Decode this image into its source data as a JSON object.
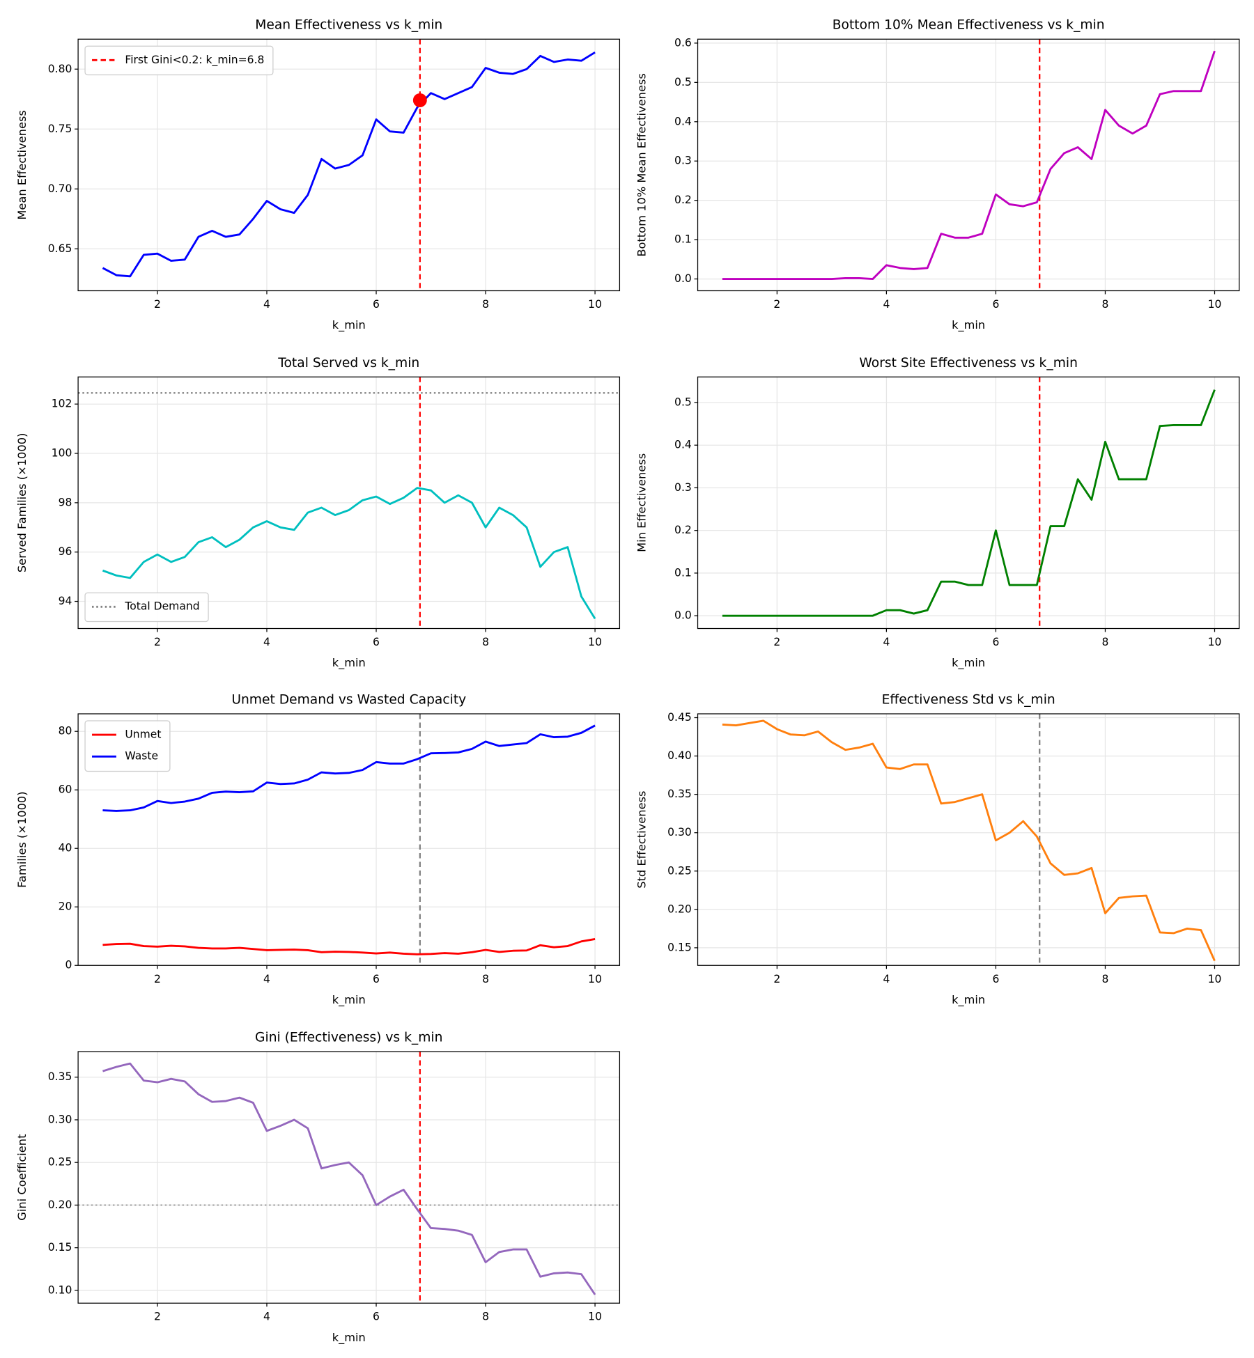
{
  "chart_data": [
    {
      "type": "line",
      "title": "Mean Effectiveness vs k_min",
      "xlabel": "k_min",
      "ylabel": "Mean Effectiveness",
      "x": [
        1,
        1.25,
        1.5,
        1.75,
        2,
        2.25,
        2.5,
        2.75,
        3,
        3.25,
        3.5,
        3.75,
        4,
        4.25,
        4.5,
        4.75,
        5,
        5.25,
        5.5,
        5.75,
        6,
        6.25,
        6.5,
        6.75,
        7,
        7.25,
        7.5,
        7.75,
        8,
        8.25,
        8.5,
        8.75,
        9,
        9.25,
        9.5,
        9.75,
        10
      ],
      "series": [
        {
          "color": "#0000ff",
          "values": [
            0.634,
            0.628,
            0.627,
            0.645,
            0.646,
            0.64,
            0.641,
            0.66,
            0.665,
            0.66,
            0.662,
            0.675,
            0.69,
            0.683,
            0.68,
            0.695,
            0.725,
            0.717,
            0.72,
            0.728,
            0.758,
            0.748,
            0.747,
            0.768,
            0.78,
            0.775,
            0.78,
            0.785,
            0.801,
            0.797,
            0.796,
            0.8,
            0.811,
            0.806,
            0.808,
            0.807,
            0.814
          ]
        }
      ],
      "vline": {
        "x": 6.8,
        "color": "#ff0000",
        "style": "dashed",
        "name": "First Gini<0.2: k_min=6.8"
      },
      "marker": {
        "x": 6.8,
        "y": 0.774,
        "color": "#ff0000"
      },
      "xlim": [
        0.55,
        10.45
      ],
      "xticks": [
        2,
        4,
        6,
        8,
        10
      ],
      "ylim": [
        0.615,
        0.825
      ],
      "yticks": [
        0.65,
        {
          "value": 0.7,
          "label": "0.70"
        },
        0.75,
        {
          "value": 0.8,
          "label": "0.80"
        }
      ],
      "grid": true,
      "legend": "upper left"
    },
    {
      "type": "line",
      "title": "Bottom 10% Mean Effectiveness vs k_min",
      "xlabel": "k_min",
      "ylabel": "Bottom 10% Mean Effectiveness",
      "x": [
        1,
        1.25,
        1.5,
        1.75,
        2,
        2.25,
        2.5,
        2.75,
        3,
        3.25,
        3.5,
        3.75,
        4,
        4.25,
        4.5,
        4.75,
        5,
        5.25,
        5.5,
        5.75,
        6,
        6.25,
        6.5,
        6.75,
        7,
        7.25,
        7.5,
        7.75,
        8,
        8.25,
        8.5,
        8.75,
        9,
        9.25,
        9.5,
        9.75,
        10
      ],
      "series": [
        {
          "color": "#bf00bf",
          "values": [
            0,
            0,
            0,
            0,
            0,
            0,
            0,
            0,
            0,
            0.002,
            0.002,
            0,
            0.035,
            0.028,
            0.025,
            0.028,
            0.115,
            0.105,
            0.105,
            0.115,
            0.215,
            0.19,
            0.185,
            0.195,
            0.28,
            0.32,
            0.335,
            0.305,
            0.43,
            0.39,
            0.37,
            0.39,
            0.47,
            0.478,
            0.478,
            0.478,
            0.58
          ]
        }
      ],
      "vline": {
        "x": 6.8,
        "color": "#ff0000",
        "style": "dashed"
      },
      "xlim": [
        0.55,
        10.45
      ],
      "xticks": [
        2,
        4,
        6,
        8,
        10
      ],
      "ylim": [
        -0.03,
        0.61
      ],
      "yticks": [
        {
          "value": 0,
          "label": "0.0"
        },
        0.1,
        0.2,
        0.3,
        0.4,
        0.5,
        0.6
      ],
      "grid": true
    },
    {
      "type": "line",
      "title": "Total Served vs k_min",
      "xlabel": "k_min",
      "ylabel": "Served Families (×1000)",
      "x": [
        1,
        1.25,
        1.5,
        1.75,
        2,
        2.25,
        2.5,
        2.75,
        3,
        3.25,
        3.5,
        3.75,
        4,
        4.25,
        4.5,
        4.75,
        5,
        5.25,
        5.5,
        5.75,
        6,
        6.25,
        6.5,
        6.75,
        7,
        7.25,
        7.5,
        7.75,
        8,
        8.25,
        8.5,
        8.75,
        9,
        9.25,
        9.5,
        9.75,
        10
      ],
      "series": [
        {
          "color": "#00bfbf",
          "values": [
            95.25,
            95.05,
            94.95,
            95.6,
            95.9,
            95.6,
            95.8,
            96.4,
            96.6,
            96.2,
            96.5,
            97.0,
            97.25,
            97.0,
            96.9,
            97.6,
            97.8,
            97.5,
            97.7,
            98.1,
            98.25,
            97.95,
            98.2,
            98.6,
            98.5,
            98.0,
            98.3,
            98.0,
            97.0,
            97.8,
            97.5,
            97.0,
            95.4,
            96.0,
            96.2,
            94.2,
            93.3
          ]
        }
      ],
      "vline": {
        "x": 6.8,
        "color": "#ff0000",
        "style": "dashed"
      },
      "hline": {
        "y": 102.45,
        "color": "#808080",
        "style": "dotted",
        "name": "Total Demand"
      },
      "xlim": [
        0.55,
        10.45
      ],
      "xticks": [
        2,
        4,
        6,
        8,
        10
      ],
      "ylim": [
        92.9,
        103.1
      ],
      "yticks": [
        94,
        96,
        98,
        100,
        102
      ],
      "grid": true,
      "legend": "lower left"
    },
    {
      "type": "line",
      "title": "Worst Site Effectiveness vs k_min",
      "xlabel": "k_min",
      "ylabel": "Min Effectiveness",
      "x": [
        1,
        1.25,
        1.5,
        1.75,
        2,
        2.25,
        2.5,
        2.75,
        3,
        3.25,
        3.5,
        3.75,
        4,
        4.25,
        4.5,
        4.75,
        5,
        5.25,
        5.5,
        5.75,
        6,
        6.25,
        6.5,
        6.75,
        7,
        7.25,
        7.5,
        7.75,
        8,
        8.25,
        8.5,
        8.75,
        9,
        9.25,
        9.5,
        9.75,
        10
      ],
      "series": [
        {
          "color": "#008000",
          "values": [
            0,
            0,
            0,
            0,
            0,
            0,
            0,
            0,
            0,
            0,
            0,
            0,
            0.013,
            0.013,
            0.005,
            0.013,
            0.08,
            0.08,
            0.072,
            0.072,
            0.2,
            0.072,
            0.072,
            0.072,
            0.21,
            0.21,
            0.32,
            0.272,
            0.408,
            0.32,
            0.32,
            0.32,
            0.445,
            0.447,
            0.447,
            0.447,
            0.53
          ]
        }
      ],
      "vline": {
        "x": 6.8,
        "color": "#ff0000",
        "style": "dashed"
      },
      "xlim": [
        0.55,
        10.45
      ],
      "xticks": [
        2,
        4,
        6,
        8,
        10
      ],
      "ylim": [
        -0.03,
        0.56
      ],
      "yticks": [
        {
          "value": 0,
          "label": "0.0"
        },
        0.1,
        0.2,
        0.3,
        0.4,
        0.5
      ],
      "grid": true
    },
    {
      "type": "line",
      "title": "Unmet Demand vs Wasted Capacity",
      "xlabel": "k_min",
      "ylabel": "Families (×1000)",
      "x": [
        1,
        1.25,
        1.5,
        1.75,
        2,
        2.25,
        2.5,
        2.75,
        3,
        3.25,
        3.5,
        3.75,
        4,
        4.25,
        4.5,
        4.75,
        5,
        5.25,
        5.5,
        5.75,
        6,
        6.25,
        6.5,
        6.75,
        7,
        7.25,
        7.5,
        7.75,
        8,
        8.25,
        8.5,
        8.75,
        9,
        9.25,
        9.5,
        9.75,
        10
      ],
      "series": [
        {
          "name": "Unmet",
          "color": "#ff0000",
          "values": [
            7,
            7.3,
            7.4,
            6.6,
            6.4,
            6.7,
            6.5,
            6,
            5.8,
            5.8,
            6,
            5.6,
            5.2,
            5.3,
            5.4,
            5.2,
            4.5,
            4.7,
            4.6,
            4.4,
            4.1,
            4.4,
            4.0,
            3.8,
            3.9,
            4.2,
            4.0,
            4.5,
            5.3,
            4.6,
            5.0,
            5.1,
            6.9,
            6.2,
            6.6,
            8.2,
            9.0
          ]
        },
        {
          "name": "Waste",
          "color": "#0000ff",
          "values": [
            53,
            52.8,
            53,
            54,
            56.2,
            55.5,
            56,
            57,
            59,
            59.4,
            59.2,
            59.5,
            62.5,
            62,
            62.2,
            63.5,
            66,
            65.6,
            65.8,
            66.8,
            69.5,
            69,
            69,
            70.5,
            72.5,
            72.6,
            72.8,
            74,
            76.5,
            75,
            75.5,
            76,
            79,
            78,
            78.2,
            79.5,
            82
          ]
        }
      ],
      "vline": {
        "x": 6.8,
        "color": "#808080",
        "style": "dashed"
      },
      "xlim": [
        0.55,
        10.45
      ],
      "xticks": [
        2,
        4,
        6,
        8,
        10
      ],
      "ylim": [
        0,
        86
      ],
      "yticks": [
        0,
        20,
        40,
        60,
        80
      ],
      "grid": true,
      "legend": "upper left"
    },
    {
      "type": "line",
      "title": "Effectiveness Std vs k_min",
      "xlabel": "k_min",
      "ylabel": "Std Effectiveness",
      "x": [
        1,
        1.25,
        1.5,
        1.75,
        2,
        2.25,
        2.5,
        2.75,
        3,
        3.25,
        3.5,
        3.75,
        4,
        4.25,
        4.5,
        4.75,
        5,
        5.25,
        5.5,
        5.75,
        6,
        6.25,
        6.5,
        6.75,
        7,
        7.25,
        7.5,
        7.75,
        8,
        8.25,
        8.5,
        8.75,
        9,
        9.25,
        9.5,
        9.75,
        10
      ],
      "series": [
        {
          "color": "#ff7f0e",
          "values": [
            0.441,
            0.44,
            0.443,
            0.446,
            0.435,
            0.428,
            0.427,
            0.432,
            0.418,
            0.408,
            0.411,
            0.416,
            0.385,
            0.383,
            0.389,
            0.389,
            0.338,
            0.34,
            0.345,
            0.35,
            0.29,
            0.3,
            0.315,
            0.295,
            0.26,
            0.245,
            0.247,
            0.254,
            0.195,
            0.215,
            0.217,
            0.218,
            0.17,
            0.169,
            0.175,
            0.173,
            0.133
          ]
        }
      ],
      "vline": {
        "x": 6.8,
        "color": "#808080",
        "style": "dashed"
      },
      "xlim": [
        0.55,
        10.45
      ],
      "xticks": [
        2,
        4,
        6,
        8,
        10
      ],
      "ylim": [
        0.127,
        0.455
      ],
      "yticks": [
        0.15,
        {
          "value": 0.2,
          "label": "0.20"
        },
        0.25,
        {
          "value": 0.3,
          "label": "0.30"
        },
        0.35,
        {
          "value": 0.4,
          "label": "0.40"
        },
        0.45
      ],
      "grid": true
    },
    {
      "type": "line",
      "title": "Gini (Effectiveness) vs k_min",
      "xlabel": "k_min",
      "ylabel": "Gini Coefficient",
      "x": [
        1,
        1.25,
        1.5,
        1.75,
        2,
        2.25,
        2.5,
        2.75,
        3,
        3.25,
        3.5,
        3.75,
        4,
        4.25,
        4.5,
        4.75,
        5,
        5.25,
        5.5,
        5.75,
        6,
        6.25,
        6.5,
        6.75,
        7,
        7.25,
        7.5,
        7.75,
        8,
        8.25,
        8.5,
        8.75,
        9,
        9.25,
        9.5,
        9.75,
        10
      ],
      "series": [
        {
          "color": "#9467bd",
          "values": [
            0.357,
            0.362,
            0.366,
            0.346,
            0.344,
            0.348,
            0.345,
            0.33,
            0.321,
            0.322,
            0.326,
            0.32,
            0.287,
            0.293,
            0.3,
            0.29,
            0.243,
            0.247,
            0.25,
            0.235,
            0.2,
            0.21,
            0.218,
            0.195,
            0.173,
            0.172,
            0.17,
            0.165,
            0.133,
            0.145,
            0.148,
            0.148,
            0.116,
            0.12,
            0.121,
            0.119,
            0.095
          ]
        }
      ],
      "vline": {
        "x": 6.8,
        "color": "#ff0000",
        "style": "dashed"
      },
      "hline": {
        "y": 0.2,
        "color": "#808080",
        "style": "dotted"
      },
      "xlim": [
        0.55,
        10.45
      ],
      "xticks": [
        2,
        4,
        6,
        8,
        10
      ],
      "ylim": [
        0.085,
        0.38
      ],
      "yticks": [
        {
          "value": 0.1,
          "label": "0.10"
        },
        0.15,
        {
          "value": 0.2,
          "label": "0.20"
        },
        0.25,
        {
          "value": 0.3,
          "label": "0.30"
        },
        0.35
      ],
      "grid": true
    }
  ]
}
